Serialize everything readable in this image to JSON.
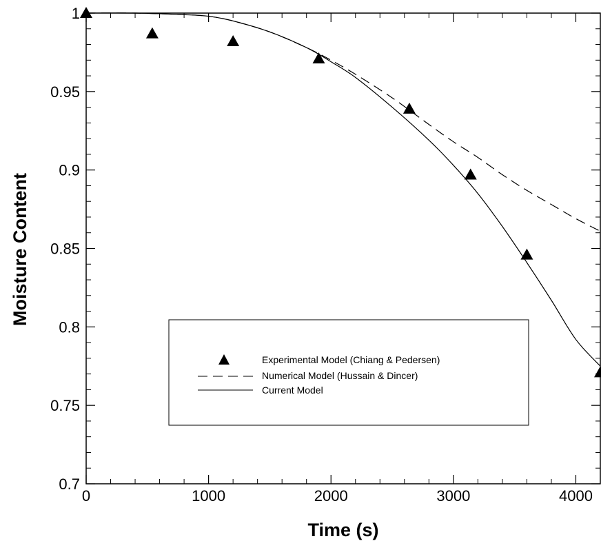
{
  "chart_data": {
    "type": "line",
    "xlabel": "Time (s)",
    "ylabel": "Moisture Content",
    "xlim": [
      0,
      4200
    ],
    "ylim": [
      0.7,
      1.0
    ],
    "x_ticks": [
      0,
      1000,
      2000,
      3000,
      4000
    ],
    "x_tick_labels": [
      "0",
      "1000",
      "2000",
      "3000",
      "4000"
    ],
    "y_ticks": [
      0.7,
      0.75,
      0.8,
      0.85,
      0.9,
      0.95,
      1.0
    ],
    "y_tick_labels": [
      "0.7",
      "0.75",
      "0.8",
      "0.85",
      "0.9",
      "0.95",
      "1"
    ],
    "grid": false,
    "legend_position": "center-right inside plot",
    "series": [
      {
        "name": "Experimental Model (Chiang & Pedersen)",
        "style": "markers",
        "marker": "filled-triangle",
        "x": [
          0,
          540,
          1200,
          1900,
          2640,
          3140,
          3600,
          4200
        ],
        "y": [
          1.0,
          0.987,
          0.982,
          0.971,
          0.939,
          0.897,
          0.846,
          0.771
        ]
      },
      {
        "name": "Numerical Model (Hussain & Dincer)",
        "style": "dashed",
        "x": [
          0,
          400,
          800,
          1000,
          1200,
          1500,
          1800,
          2000,
          2200,
          2500,
          2800,
          3000,
          3200,
          3400,
          3600,
          3800,
          4000,
          4200
        ],
        "y": [
          1.0,
          1.0,
          0.999,
          0.998,
          0.995,
          0.988,
          0.978,
          0.97,
          0.961,
          0.946,
          0.929,
          0.918,
          0.908,
          0.897,
          0.887,
          0.878,
          0.869,
          0.861
        ]
      },
      {
        "name": "Current Model",
        "style": "solid",
        "x": [
          0,
          400,
          800,
          1000,
          1200,
          1500,
          1800,
          2000,
          2200,
          2500,
          2800,
          3000,
          3200,
          3400,
          3600,
          3800,
          4000,
          4200
        ],
        "y": [
          1.0,
          1.0,
          0.999,
          0.998,
          0.995,
          0.988,
          0.978,
          0.969,
          0.959,
          0.94,
          0.919,
          0.903,
          0.885,
          0.864,
          0.841,
          0.817,
          0.792,
          0.775
        ]
      }
    ]
  }
}
